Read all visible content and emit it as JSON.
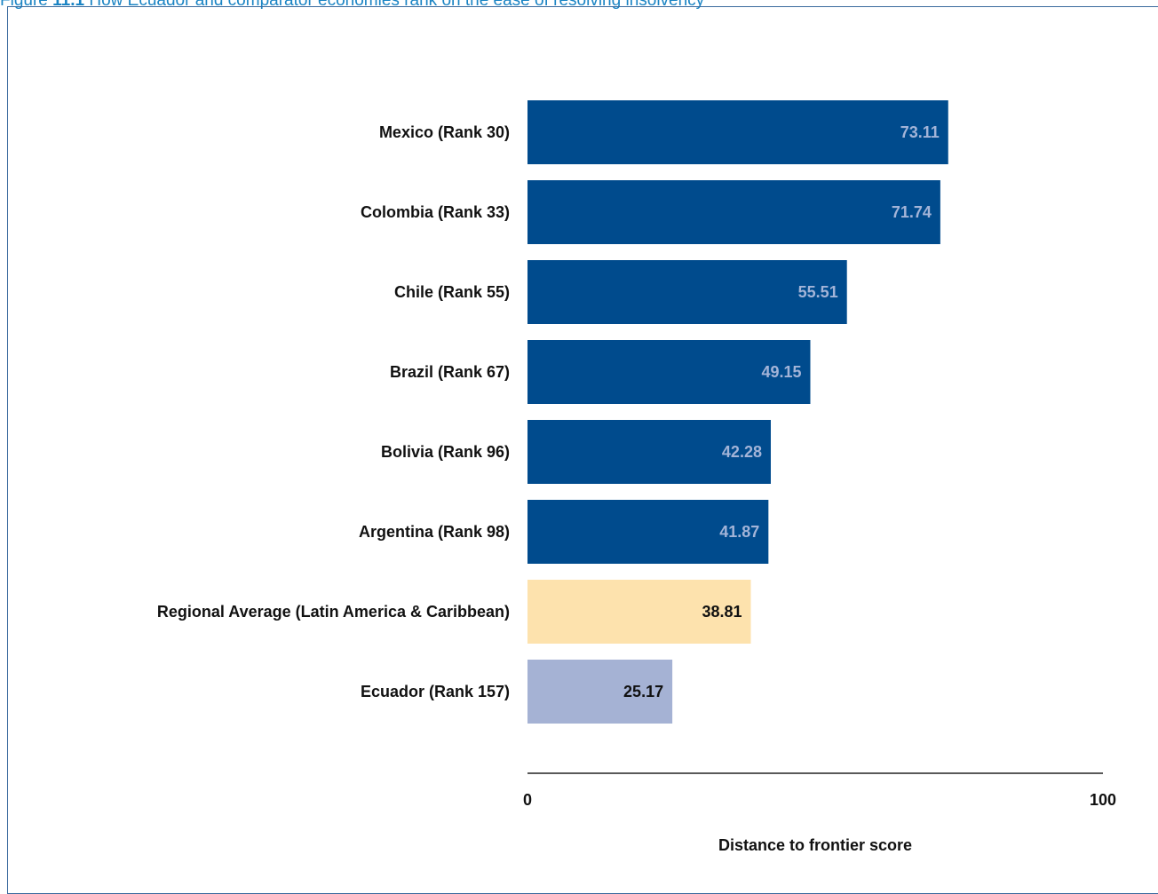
{
  "figure": {
    "number": "11.1",
    "prefix": "Figure ",
    "title": " How Ecuador and comparator economies rank on the ease of resolving insolvency"
  },
  "chart_data": {
    "type": "bar",
    "orientation": "horizontal",
    "categories": [
      "Mexico (Rank 30)",
      "Colombia (Rank 33)",
      "Chile (Rank 55)",
      "Brazil (Rank 67)",
      "Bolivia (Rank 96)",
      "Argentina (Rank 98)",
      "Regional Average (Latin America & Caribbean)",
      "Ecuador (Rank 157)"
    ],
    "values": [
      73.11,
      71.74,
      55.51,
      49.15,
      42.28,
      41.87,
      38.81,
      25.17
    ],
    "value_labels": [
      "73.11",
      "71.74",
      "55.51",
      "49.15",
      "42.28",
      "41.87",
      "38.81",
      "25.17"
    ],
    "bar_colors": [
      "#004b8d",
      "#004b8d",
      "#004b8d",
      "#004b8d",
      "#004b8d",
      "#004b8d",
      "#fde2ad",
      "#a5b2d4"
    ],
    "label_colors": [
      "#a3b4d8",
      "#a3b4d8",
      "#a3b4d8",
      "#a3b4d8",
      "#a3b4d8",
      "#a3b4d8",
      "#111111",
      "#111111"
    ],
    "xlim": [
      0,
      100
    ],
    "xticks": [
      "0",
      "100"
    ],
    "xlabel": "Distance to frontier score",
    "title": "",
    "ylabel": "",
    "grid": false,
    "legend": "none"
  }
}
